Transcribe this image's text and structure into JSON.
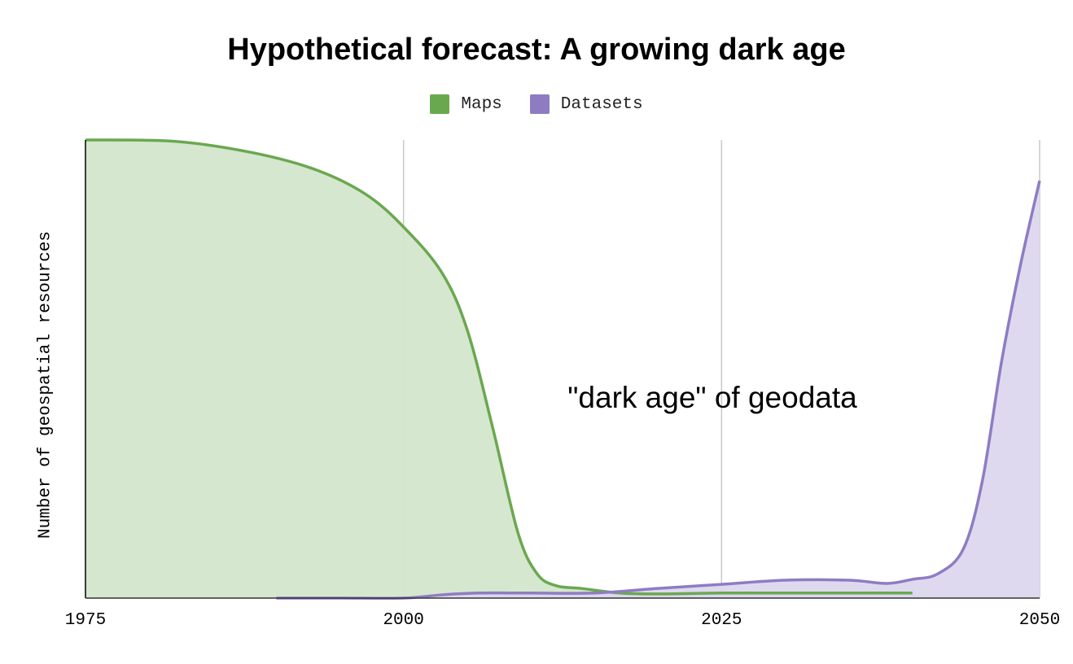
{
  "chart_data": {
    "type": "area",
    "title": "Hypothetical forecast: A growing dark age",
    "xlabel": "",
    "ylabel": "Number of geospatial resources",
    "xlim": [
      1975,
      2050
    ],
    "ylim": [
      0,
      100
    ],
    "x_ticks": [
      "1975",
      "2000",
      "2025",
      "2050"
    ],
    "grid": true,
    "legend": "top",
    "annotation": "\"dark age\" of geodata",
    "series": [
      {
        "name": "Maps",
        "color": "#6aa84f",
        "fill": "#d3e6cb",
        "x": [
          1975,
          1982,
          1988,
          1993,
          1997,
          2000,
          2003,
          2005,
          2007,
          2009,
          2010.5,
          2012,
          2014,
          2017,
          2020,
          2025,
          2030,
          2035,
          2040
        ],
        "y": [
          100,
          99.7,
          97.3,
          93.6,
          88.2,
          81.0,
          71.1,
          58.6,
          37.3,
          14.2,
          5.3,
          2.7,
          2.1,
          1.1,
          0.9,
          1.1,
          1.1,
          1.1,
          1.1
        ]
      },
      {
        "name": "Datasets",
        "color": "#8e7cc3",
        "fill": "#ddd7ee",
        "x": [
          1990,
          1995,
          2000,
          2003,
          2006,
          2010,
          2015,
          2020,
          2025,
          2030,
          2035,
          2038,
          2040,
          2042,
          2044,
          2045.5,
          2047,
          2048.5,
          2050
        ],
        "y": [
          0,
          0,
          0,
          0.7,
          1.1,
          1.1,
          1.1,
          2.1,
          3.0,
          3.9,
          3.9,
          3.2,
          4.1,
          5.3,
          10.7,
          25.6,
          51.5,
          72.8,
          91.1
        ]
      }
    ]
  }
}
